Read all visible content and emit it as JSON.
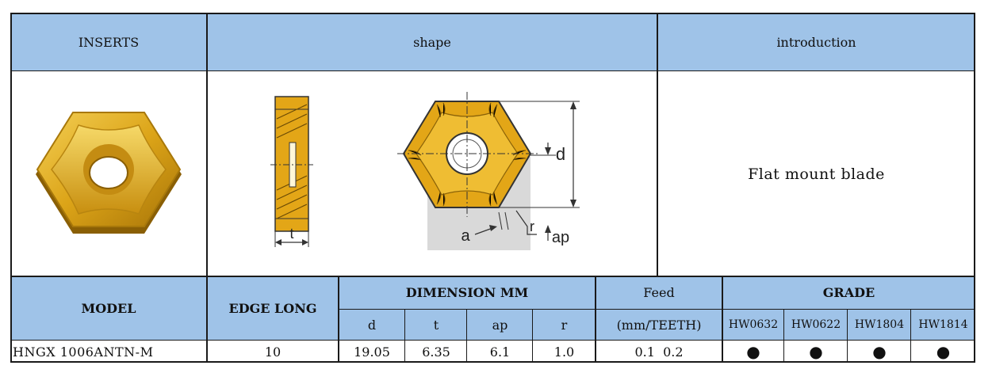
{
  "header": {
    "inserts": "INSERTS",
    "shape": "shape",
    "introduction": "introduction"
  },
  "drawing": {
    "label_t": "t",
    "label_d": "d",
    "label_a": "a",
    "label_r": "r",
    "label_ap": "ap"
  },
  "introduction_text": "Flat mount blade",
  "spec_header": {
    "model": "MODEL",
    "edge_long": "EDGE LONG",
    "dimension": "DIMENSION MM",
    "feed": "Feed",
    "grade": "GRADE",
    "d": "d",
    "t": "t",
    "ap": "ap",
    "r": "r",
    "feed_unit": "(mm/TEETH)",
    "grades": [
      "HW0632",
      "HW0622",
      "HW1804",
      "HW1814"
    ]
  },
  "row": {
    "model": "HNGX 1006ANTN-M",
    "edge_long": "10",
    "d": "19.05",
    "t": "6.35",
    "ap": "6.1",
    "r": "1.0",
    "feed": "0.1  0.2",
    "grade_marks": [
      "●",
      "●",
      "●",
      "●"
    ]
  },
  "colors": {
    "header_bg": "#9fc3e8",
    "insert_gold": "#e0a817",
    "insert_gold_dark": "#b07d0a",
    "grid": "#1a1a1a"
  }
}
